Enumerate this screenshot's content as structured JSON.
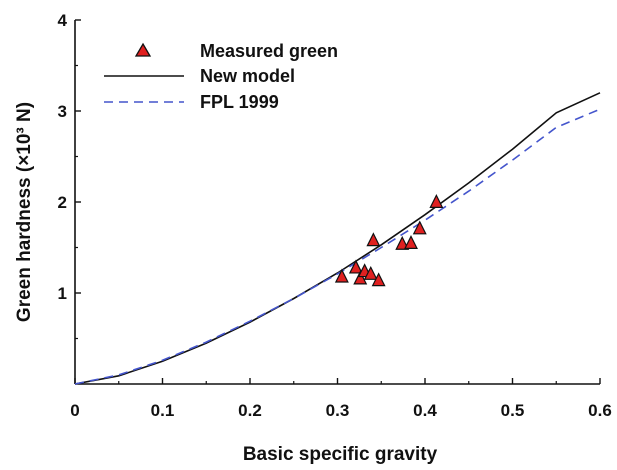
{
  "chart_data": {
    "type": "scatter",
    "xlabel": "Basic specific gravity",
    "ylabel": "Green hardness (×10³ N)",
    "xlim": [
      0,
      0.6
    ],
    "ylim": [
      0,
      4
    ],
    "x_ticks": [
      "0",
      "0.1",
      "0.2",
      "0.3",
      "0.4",
      "0.5",
      "0.6"
    ],
    "y_ticks": [
      "1",
      "2",
      "3",
      "4"
    ],
    "grid": false,
    "legend_position": "top-left",
    "legend": [
      {
        "label": "Measured green",
        "marker": "triangle",
        "color": "#e02020"
      },
      {
        "label": "New model",
        "style": "solid",
        "color": "#111111"
      },
      {
        "label": "FPL 1999",
        "style": "dashed",
        "color": "#4455cc"
      }
    ],
    "series": [
      {
        "name": "Measured green",
        "kind": "scatter",
        "points": [
          [
            0.305,
            1.18
          ],
          [
            0.321,
            1.28
          ],
          [
            0.326,
            1.16
          ],
          [
            0.331,
            1.24
          ],
          [
            0.338,
            1.21
          ],
          [
            0.341,
            1.58
          ],
          [
            0.347,
            1.14
          ],
          [
            0.374,
            1.54
          ],
          [
            0.384,
            1.55
          ],
          [
            0.394,
            1.71
          ],
          [
            0.413,
            2.0
          ]
        ]
      },
      {
        "name": "New model",
        "kind": "line",
        "points": [
          [
            0,
            0
          ],
          [
            0.05,
            0.09
          ],
          [
            0.1,
            0.25
          ],
          [
            0.15,
            0.45
          ],
          [
            0.2,
            0.68
          ],
          [
            0.25,
            0.94
          ],
          [
            0.3,
            1.22
          ],
          [
            0.35,
            1.53
          ],
          [
            0.4,
            1.86
          ],
          [
            0.45,
            2.21
          ],
          [
            0.5,
            2.58
          ],
          [
            0.55,
            2.98
          ],
          [
            0.6,
            3.2
          ]
        ]
      },
      {
        "name": "FPL 1999",
        "kind": "line",
        "points": [
          [
            0,
            0
          ],
          [
            0.05,
            0.1
          ],
          [
            0.1,
            0.26
          ],
          [
            0.15,
            0.46
          ],
          [
            0.2,
            0.69
          ],
          [
            0.25,
            0.94
          ],
          [
            0.3,
            1.21
          ],
          [
            0.35,
            1.5
          ],
          [
            0.4,
            1.8
          ],
          [
            0.45,
            2.12
          ],
          [
            0.5,
            2.46
          ],
          [
            0.55,
            2.82
          ],
          [
            0.6,
            3.02
          ]
        ]
      }
    ]
  }
}
